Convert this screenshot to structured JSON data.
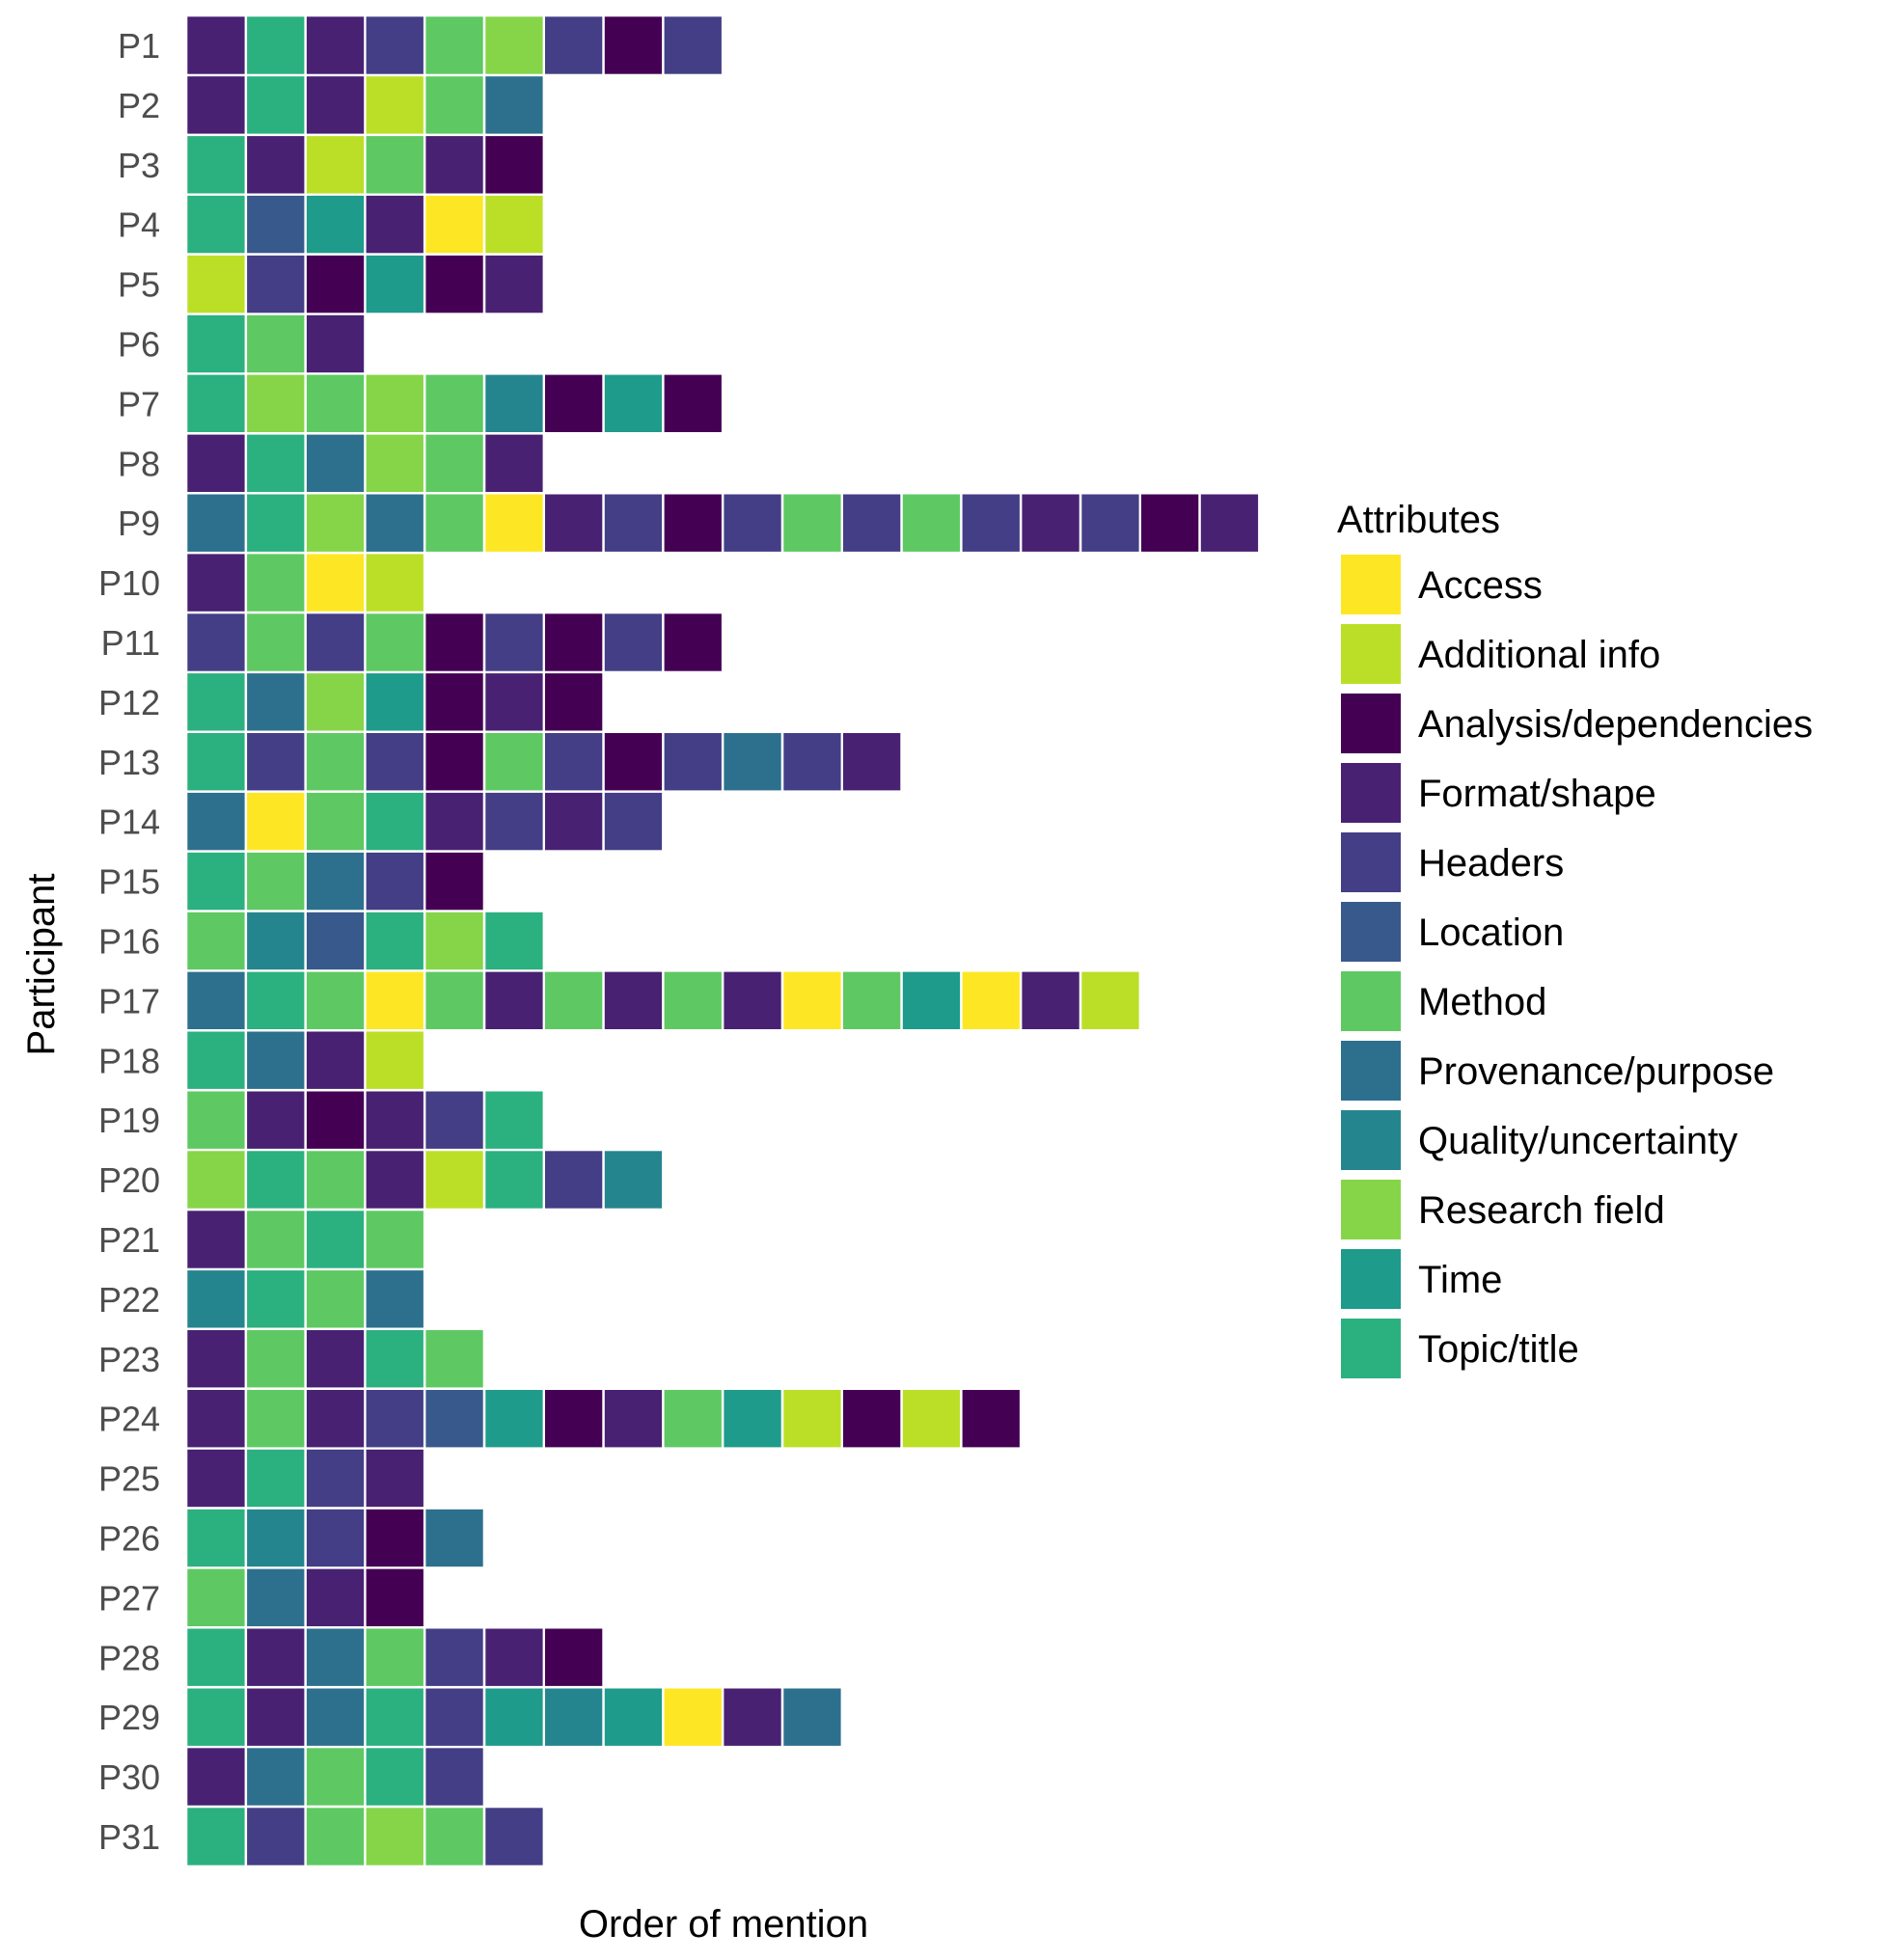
{
  "chart_data": {
    "type": "heatmap",
    "xlabel": "Order of mention",
    "ylabel": "Participant",
    "legend_title": "Attributes",
    "legend_position": "right",
    "categories": [
      {
        "name": "Access",
        "color": "#FDE725"
      },
      {
        "name": "Additional info",
        "color": "#BBDF27"
      },
      {
        "name": "Analysis/dependencies",
        "color": "#440154"
      },
      {
        "name": "Format/shape",
        "color": "#482173"
      },
      {
        "name": "Headers",
        "color": "#433E85"
      },
      {
        "name": "Location",
        "color": "#38598C"
      },
      {
        "name": "Method",
        "color": "#5EC962"
      },
      {
        "name": "Provenance/purpose",
        "color": "#2D708E"
      },
      {
        "name": "Quality/uncertainty",
        "color": "#25858E"
      },
      {
        "name": "Research field",
        "color": "#86D549"
      },
      {
        "name": "Time",
        "color": "#1E9B8A"
      },
      {
        "name": "Topic/title",
        "color": "#2BB07F"
      }
    ],
    "rows": [
      {
        "participant": "P1",
        "sequence": [
          "Format/shape",
          "Topic/title",
          "Format/shape",
          "Headers",
          "Method",
          "Research field",
          "Headers",
          "Analysis/dependencies",
          "Headers"
        ]
      },
      {
        "participant": "P2",
        "sequence": [
          "Format/shape",
          "Topic/title",
          "Format/shape",
          "Additional info",
          "Method",
          "Provenance/purpose"
        ]
      },
      {
        "participant": "P3",
        "sequence": [
          "Topic/title",
          "Format/shape",
          "Additional info",
          "Method",
          "Format/shape",
          "Analysis/dependencies"
        ]
      },
      {
        "participant": "P4",
        "sequence": [
          "Topic/title",
          "Location",
          "Time",
          "Format/shape",
          "Access",
          "Additional info"
        ]
      },
      {
        "participant": "P5",
        "sequence": [
          "Additional info",
          "Headers",
          "Analysis/dependencies",
          "Time",
          "Analysis/dependencies",
          "Format/shape"
        ]
      },
      {
        "participant": "P6",
        "sequence": [
          "Topic/title",
          "Method",
          "Format/shape"
        ]
      },
      {
        "participant": "P7",
        "sequence": [
          "Topic/title",
          "Research field",
          "Method",
          "Research field",
          "Method",
          "Quality/uncertainty",
          "Analysis/dependencies",
          "Time",
          "Analysis/dependencies"
        ]
      },
      {
        "participant": "P8",
        "sequence": [
          "Format/shape",
          "Topic/title",
          "Provenance/purpose",
          "Research field",
          "Method",
          "Format/shape"
        ]
      },
      {
        "participant": "P9",
        "sequence": [
          "Provenance/purpose",
          "Topic/title",
          "Research field",
          "Provenance/purpose",
          "Method",
          "Access",
          "Format/shape",
          "Headers",
          "Analysis/dependencies",
          "Headers",
          "Method",
          "Headers",
          "Method",
          "Headers",
          "Format/shape",
          "Headers",
          "Analysis/dependencies",
          "Format/shape"
        ]
      },
      {
        "participant": "P10",
        "sequence": [
          "Format/shape",
          "Method",
          "Access",
          "Additional info"
        ]
      },
      {
        "participant": "P11",
        "sequence": [
          "Headers",
          "Method",
          "Headers",
          "Method",
          "Analysis/dependencies",
          "Headers",
          "Analysis/dependencies",
          "Headers",
          "Analysis/dependencies"
        ]
      },
      {
        "participant": "P12",
        "sequence": [
          "Topic/title",
          "Provenance/purpose",
          "Research field",
          "Time",
          "Analysis/dependencies",
          "Format/shape",
          "Analysis/dependencies"
        ]
      },
      {
        "participant": "P13",
        "sequence": [
          "Topic/title",
          "Headers",
          "Method",
          "Headers",
          "Analysis/dependencies",
          "Method",
          "Headers",
          "Analysis/dependencies",
          "Headers",
          "Provenance/purpose",
          "Headers",
          "Format/shape"
        ]
      },
      {
        "participant": "P14",
        "sequence": [
          "Provenance/purpose",
          "Access",
          "Method",
          "Topic/title",
          "Format/shape",
          "Headers",
          "Format/shape",
          "Headers"
        ]
      },
      {
        "participant": "P15",
        "sequence": [
          "Topic/title",
          "Method",
          "Provenance/purpose",
          "Headers",
          "Analysis/dependencies"
        ]
      },
      {
        "participant": "P16",
        "sequence": [
          "Method",
          "Quality/uncertainty",
          "Location",
          "Topic/title",
          "Research field",
          "Topic/title"
        ]
      },
      {
        "participant": "P17",
        "sequence": [
          "Provenance/purpose",
          "Topic/title",
          "Method",
          "Access",
          "Method",
          "Format/shape",
          "Method",
          "Format/shape",
          "Method",
          "Format/shape",
          "Access",
          "Method",
          "Time",
          "Access",
          "Format/shape",
          "Additional info"
        ]
      },
      {
        "participant": "P18",
        "sequence": [
          "Topic/title",
          "Provenance/purpose",
          "Format/shape",
          "Additional info"
        ]
      },
      {
        "participant": "P19",
        "sequence": [
          "Method",
          "Format/shape",
          "Analysis/dependencies",
          "Format/shape",
          "Headers",
          "Topic/title"
        ]
      },
      {
        "participant": "P20",
        "sequence": [
          "Research field",
          "Topic/title",
          "Method",
          "Format/shape",
          "Additional info",
          "Topic/title",
          "Headers",
          "Quality/uncertainty"
        ]
      },
      {
        "participant": "P21",
        "sequence": [
          "Format/shape",
          "Method",
          "Topic/title",
          "Method"
        ]
      },
      {
        "participant": "P22",
        "sequence": [
          "Quality/uncertainty",
          "Topic/title",
          "Method",
          "Provenance/purpose"
        ]
      },
      {
        "participant": "P23",
        "sequence": [
          "Format/shape",
          "Method",
          "Format/shape",
          "Topic/title",
          "Method"
        ]
      },
      {
        "participant": "P24",
        "sequence": [
          "Format/shape",
          "Method",
          "Format/shape",
          "Headers",
          "Location",
          "Time",
          "Analysis/dependencies",
          "Format/shape",
          "Method",
          "Time",
          "Additional info",
          "Analysis/dependencies",
          "Additional info",
          "Analysis/dependencies"
        ]
      },
      {
        "participant": "P25",
        "sequence": [
          "Format/shape",
          "Topic/title",
          "Headers",
          "Format/shape"
        ]
      },
      {
        "participant": "P26",
        "sequence": [
          "Topic/title",
          "Quality/uncertainty",
          "Headers",
          "Analysis/dependencies",
          "Provenance/purpose"
        ]
      },
      {
        "participant": "P27",
        "sequence": [
          "Method",
          "Provenance/purpose",
          "Format/shape",
          "Analysis/dependencies"
        ]
      },
      {
        "participant": "P28",
        "sequence": [
          "Topic/title",
          "Format/shape",
          "Provenance/purpose",
          "Method",
          "Headers",
          "Format/shape",
          "Analysis/dependencies"
        ]
      },
      {
        "participant": "P29",
        "sequence": [
          "Topic/title",
          "Format/shape",
          "Provenance/purpose",
          "Topic/title",
          "Headers",
          "Time",
          "Quality/uncertainty",
          "Time",
          "Access",
          "Format/shape",
          "Provenance/purpose"
        ]
      },
      {
        "participant": "P30",
        "sequence": [
          "Format/shape",
          "Provenance/purpose",
          "Method",
          "Topic/title",
          "Headers"
        ]
      },
      {
        "participant": "P31",
        "sequence": [
          "Topic/title",
          "Headers",
          "Method",
          "Research field",
          "Method",
          "Headers"
        ]
      }
    ]
  }
}
